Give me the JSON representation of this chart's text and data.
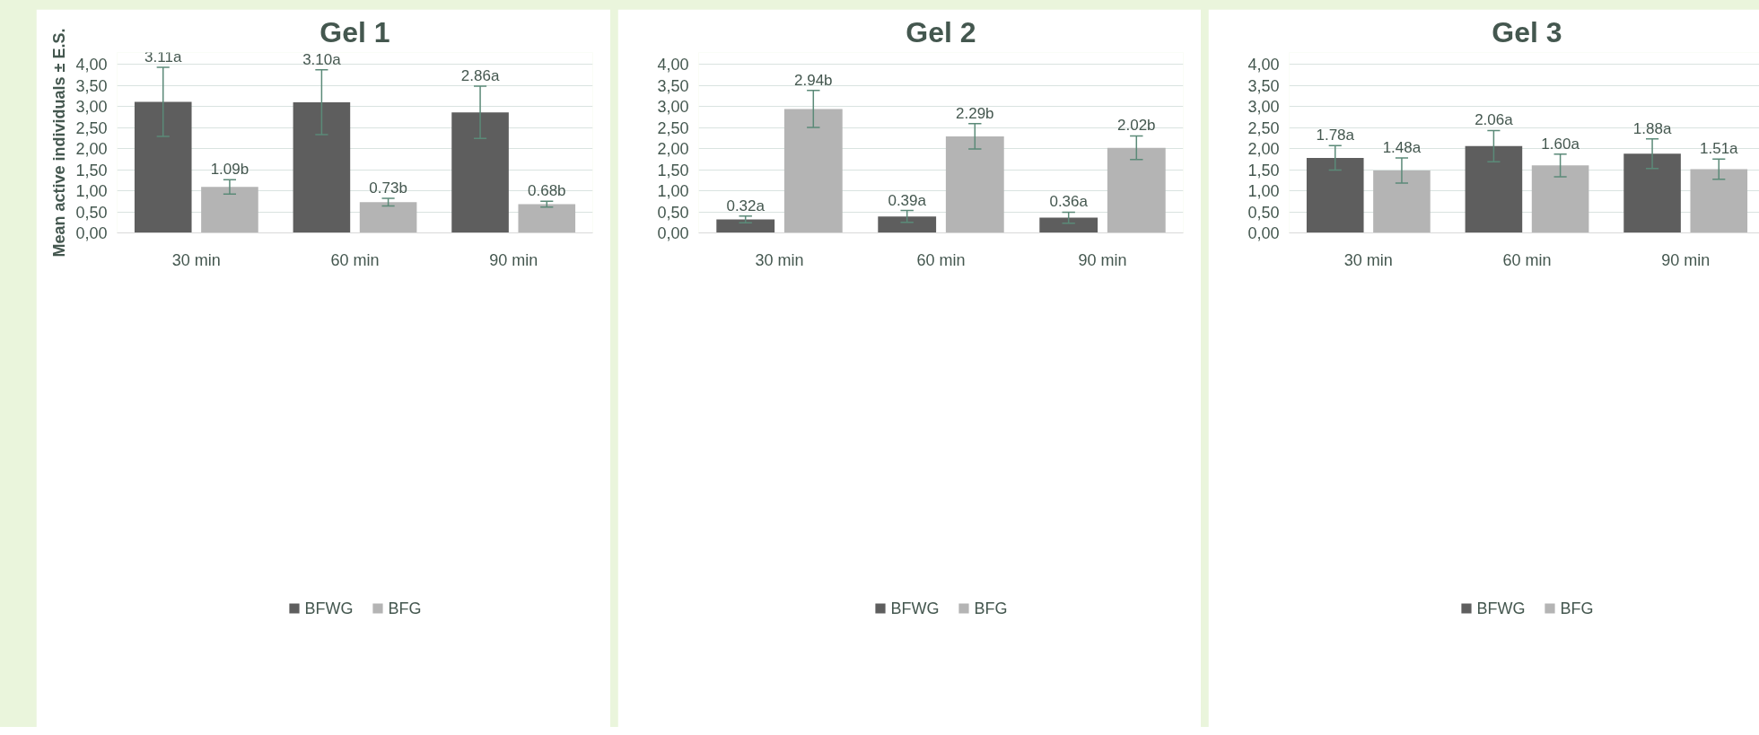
{
  "chart_data": [
    {
      "type": "bar",
      "title": "Gel 1",
      "ylabel": "Mean active individuals ± E.S.",
      "categories": [
        "30 min",
        "60 min",
        "90 min"
      ],
      "ylim": [
        0,
        4
      ],
      "yticks": [
        {
          "value": 0,
          "label": "0,00"
        },
        {
          "value": 0.5,
          "label": "0,50"
        },
        {
          "value": 1,
          "label": "1,00"
        },
        {
          "value": 1.5,
          "label": "1,50"
        },
        {
          "value": 2,
          "label": "2,00"
        },
        {
          "value": 2.5,
          "label": "2,50"
        },
        {
          "value": 3,
          "label": "3,00"
        },
        {
          "value": 3.5,
          "label": "3,50"
        },
        {
          "value": 4,
          "label": "4,00"
        }
      ],
      "grid": "y",
      "legend": "bottom",
      "series": [
        {
          "name": "BFWG",
          "color": "#5e5e5e",
          "values": [
            3.11,
            3.1,
            2.86
          ],
          "errors": [
            0.82,
            0.77,
            0.62
          ],
          "value_labels": [
            "3.11a",
            "3.10a",
            "2.86a"
          ]
        },
        {
          "name": "BFG",
          "color": "#b4b4b4",
          "values": [
            1.09,
            0.73,
            0.68
          ],
          "errors": [
            0.17,
            0.09,
            0.07
          ],
          "value_labels": [
            "1.09b",
            "0.73b",
            "0.68b"
          ]
        }
      ]
    },
    {
      "type": "bar",
      "title": "Gel 2",
      "categories": [
        "30 min",
        "60 min",
        "90 min"
      ],
      "ylim": [
        0,
        4
      ],
      "yticks": [
        {
          "value": 0,
          "label": "0,00"
        },
        {
          "value": 0.5,
          "label": "0,50"
        },
        {
          "value": 1,
          "label": "1,00"
        },
        {
          "value": 1.5,
          "label": "1,50"
        },
        {
          "value": 2,
          "label": "2,00"
        },
        {
          "value": 2.5,
          "label": "2,50"
        },
        {
          "value": 3,
          "label": "3,00"
        },
        {
          "value": 3.5,
          "label": "3,50"
        },
        {
          "value": 4,
          "label": "4,00"
        }
      ],
      "grid": "y",
      "legend": "bottom",
      "series": [
        {
          "name": "BFWG",
          "color": "#5e5e5e",
          "values": [
            0.32,
            0.39,
            0.36
          ],
          "errors": [
            0.08,
            0.14,
            0.13
          ],
          "value_labels": [
            "0.32a",
            "0.39a",
            "0.36a"
          ]
        },
        {
          "name": "BFG",
          "color": "#b4b4b4",
          "values": [
            2.94,
            2.29,
            2.02
          ],
          "errors": [
            0.44,
            0.3,
            0.28
          ],
          "value_labels": [
            "2.94b",
            "2.29b",
            "2.02b"
          ]
        }
      ]
    },
    {
      "type": "bar",
      "title": "Gel 3",
      "categories": [
        "30 min",
        "60 min",
        "90 min"
      ],
      "ylim": [
        0,
        4
      ],
      "yticks": [
        {
          "value": 0,
          "label": "0,00"
        },
        {
          "value": 0.5,
          "label": "0,50"
        },
        {
          "value": 1,
          "label": "1,00"
        },
        {
          "value": 1.5,
          "label": "1,50"
        },
        {
          "value": 2,
          "label": "2,00"
        },
        {
          "value": 2.5,
          "label": "2,50"
        },
        {
          "value": 3,
          "label": "3,00"
        },
        {
          "value": 3.5,
          "label": "3,50"
        },
        {
          "value": 4,
          "label": "4,00"
        }
      ],
      "grid": "y",
      "legend": "bottom",
      "series": [
        {
          "name": "BFWG",
          "color": "#5e5e5e",
          "values": [
            1.78,
            2.06,
            1.88
          ],
          "errors": [
            0.29,
            0.37,
            0.35
          ],
          "value_labels": [
            "1.78a",
            "2.06a",
            "1.88a"
          ]
        },
        {
          "name": "BFG",
          "color": "#b4b4b4",
          "values": [
            1.48,
            1.6,
            1.51
          ],
          "errors": [
            0.3,
            0.27,
            0.24
          ],
          "value_labels": [
            "1.48a",
            "1.60a",
            "1.51a"
          ]
        }
      ]
    }
  ]
}
